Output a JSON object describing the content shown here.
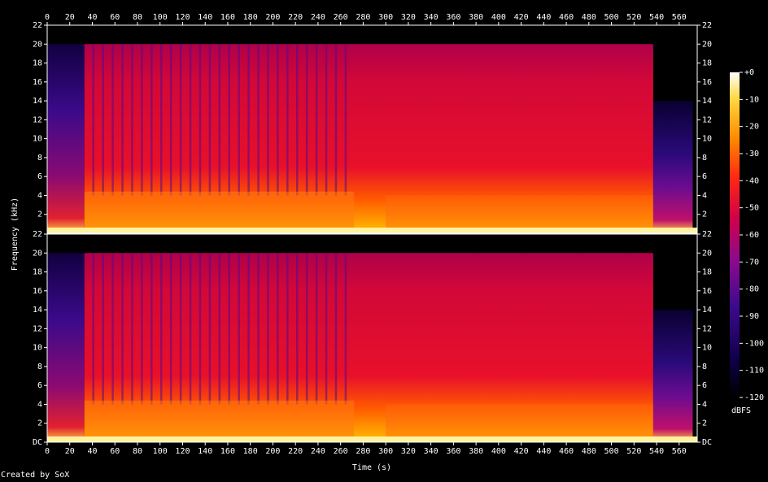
{
  "chart_data": {
    "type": "heatmap",
    "title": "",
    "xlabel": "Time (s)",
    "ylabel": "Frequency (kHz)",
    "colorbar_label": "dBFS",
    "x_ticks": [
      "0",
      "20",
      "40",
      "60",
      "80",
      "100",
      "120",
      "140",
      "160",
      "180",
      "200",
      "220",
      "240",
      "260",
      "280",
      "300",
      "320",
      "340",
      "360",
      "380",
      "400",
      "420",
      "440",
      "460",
      "480",
      "500",
      "520",
      "540",
      "560"
    ],
    "xlim": [
      0,
      576
    ],
    "channels": [
      {
        "y_ticks": [
          "2",
          "4",
          "6",
          "8",
          "10",
          "12",
          "14",
          "16",
          "18",
          "20",
          "22"
        ]
      },
      {
        "y_ticks": [
          "DC",
          "2",
          "4",
          "6",
          "8",
          "10",
          "12",
          "14",
          "16",
          "18",
          "20",
          "22"
        ]
      }
    ],
    "ylim_khz": [
      0,
      22
    ],
    "colorbar_ticks": [
      "+0",
      "-10",
      "-20",
      "-30",
      "-40",
      "-50",
      "-60",
      "-70",
      "-80",
      "-90",
      "-100",
      "-110",
      "-120"
    ],
    "colorbar_range_dbfs": [
      -120,
      0
    ],
    "colors": {
      "low": "#000000",
      "mid_low": "#2a0a6e",
      "mid": "#d4003c",
      "high": "#ff8c00",
      "top": "#ffffff"
    },
    "footer": "Created by SoX"
  }
}
